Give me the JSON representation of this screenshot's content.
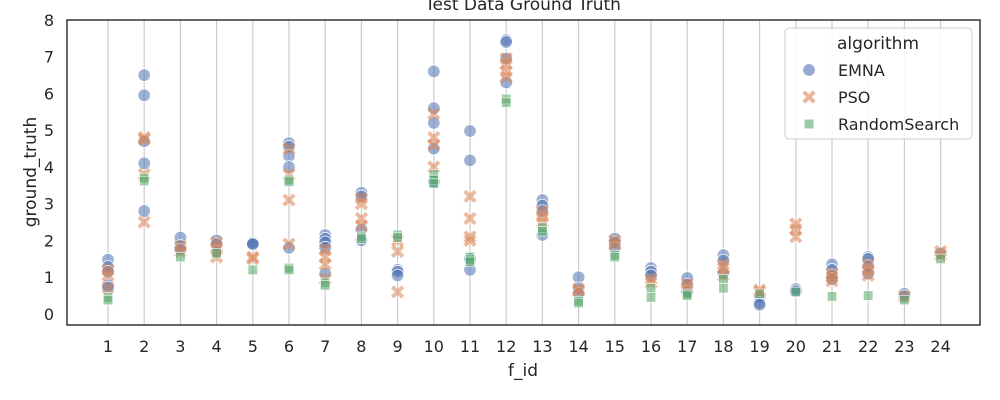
{
  "chart_data": {
    "type": "scatter",
    "title": "Test Data Ground Truth",
    "xlabel": "f_id",
    "ylabel": "ground_truth",
    "categories": [
      "1",
      "2",
      "3",
      "4",
      "5",
      "6",
      "7",
      "8",
      "9",
      "10",
      "11",
      "12",
      "13",
      "14",
      "15",
      "16",
      "17",
      "18",
      "19",
      "20",
      "21",
      "22",
      "23",
      "24"
    ],
    "ylim": [
      -0.3,
      8
    ],
    "yticks": [
      0,
      1,
      2,
      3,
      4,
      5,
      6,
      7,
      8
    ],
    "grid": "vertical",
    "legend": {
      "title": "algorithm",
      "placement": "top-right",
      "entries": [
        "EMNA",
        "PSO",
        "RandomSearch"
      ]
    },
    "colors": {
      "EMNA": "#4c72b0",
      "PSO": "#dd8452",
      "RandomSearch": "#55a868"
    },
    "markers": {
      "EMNA": "circle",
      "PSO": "x",
      "RandomSearch": "square"
    },
    "series": [
      {
        "name": "EMNA",
        "points": [
          [
            1,
            1.48
          ],
          [
            1,
            1.28
          ],
          [
            1,
            1.15
          ],
          [
            1,
            0.78
          ],
          [
            1,
            0.72
          ],
          [
            2,
            6.5
          ],
          [
            2,
            5.95
          ],
          [
            2,
            4.7
          ],
          [
            2,
            4.1
          ],
          [
            2,
            2.8
          ],
          [
            3,
            2.08
          ],
          [
            3,
            1.85
          ],
          [
            3,
            1.75
          ],
          [
            4,
            2.0
          ],
          [
            4,
            1.9
          ],
          [
            4,
            1.7
          ],
          [
            5,
            1.95
          ],
          [
            5,
            1.92
          ],
          [
            5,
            1.9
          ],
          [
            6,
            4.65
          ],
          [
            6,
            4.55
          ],
          [
            6,
            4.3
          ],
          [
            6,
            4.0
          ],
          [
            6,
            1.8
          ],
          [
            7,
            2.15
          ],
          [
            7,
            2.05
          ],
          [
            7,
            1.95
          ],
          [
            7,
            1.8
          ],
          [
            7,
            1.1
          ],
          [
            8,
            3.3
          ],
          [
            8,
            3.2
          ],
          [
            8,
            2.3
          ],
          [
            8,
            2.0
          ],
          [
            9,
            1.2
          ],
          [
            9,
            1.15
          ],
          [
            9,
            1.05
          ],
          [
            10,
            6.6
          ],
          [
            10,
            5.6
          ],
          [
            10,
            5.2
          ],
          [
            10,
            4.5
          ],
          [
            10,
            3.6
          ],
          [
            11,
            4.98
          ],
          [
            11,
            4.18
          ],
          [
            11,
            1.5
          ],
          [
            11,
            1.2
          ],
          [
            12,
            7.45
          ],
          [
            12,
            7.4
          ],
          [
            12,
            6.95
          ],
          [
            12,
            6.3
          ],
          [
            13,
            3.1
          ],
          [
            13,
            2.95
          ],
          [
            13,
            2.8
          ],
          [
            13,
            2.15
          ],
          [
            14,
            1.0
          ],
          [
            14,
            0.7
          ],
          [
            14,
            0.55
          ],
          [
            15,
            2.05
          ],
          [
            15,
            1.95
          ],
          [
            15,
            1.8
          ],
          [
            16,
            1.25
          ],
          [
            16,
            1.15
          ],
          [
            16,
            1.05
          ],
          [
            17,
            0.98
          ],
          [
            17,
            0.8
          ],
          [
            17,
            0.6
          ],
          [
            18,
            1.6
          ],
          [
            18,
            1.45
          ],
          [
            18,
            1.1
          ],
          [
            19,
            0.45
          ],
          [
            19,
            0.3
          ],
          [
            19,
            0.25
          ],
          [
            20,
            0.68
          ],
          [
            20,
            0.62
          ],
          [
            21,
            1.35
          ],
          [
            21,
            1.2
          ],
          [
            21,
            1.05
          ],
          [
            21,
            0.95
          ],
          [
            22,
            1.55
          ],
          [
            22,
            1.5
          ],
          [
            22,
            1.3
          ],
          [
            22,
            1.1
          ],
          [
            23,
            0.55
          ],
          [
            23,
            0.48
          ],
          [
            24,
            1.65
          ]
        ]
      },
      {
        "name": "PSO",
        "points": [
          [
            1,
            1.2
          ],
          [
            1,
            1.05
          ],
          [
            1,
            0.7
          ],
          [
            2,
            4.8
          ],
          [
            2,
            4.75
          ],
          [
            2,
            3.8
          ],
          [
            2,
            2.5
          ],
          [
            3,
            1.85
          ],
          [
            3,
            1.7
          ],
          [
            4,
            1.95
          ],
          [
            4,
            1.8
          ],
          [
            4,
            1.55
          ],
          [
            5,
            1.55
          ],
          [
            5,
            1.5
          ],
          [
            6,
            4.5
          ],
          [
            6,
            3.8
          ],
          [
            6,
            3.1
          ],
          [
            6,
            1.9
          ],
          [
            7,
            1.75
          ],
          [
            7,
            1.55
          ],
          [
            7,
            1.35
          ],
          [
            7,
            0.95
          ],
          [
            8,
            3.15
          ],
          [
            8,
            3.0
          ],
          [
            8,
            2.6
          ],
          [
            8,
            2.4
          ],
          [
            9,
            2.0
          ],
          [
            9,
            1.7
          ],
          [
            9,
            0.6
          ],
          [
            10,
            5.45
          ],
          [
            10,
            4.8
          ],
          [
            10,
            4.6
          ],
          [
            10,
            4.0
          ],
          [
            11,
            3.2
          ],
          [
            11,
            2.6
          ],
          [
            11,
            2.1
          ],
          [
            11,
            2.0
          ],
          [
            12,
            6.95
          ],
          [
            12,
            6.8
          ],
          [
            12,
            6.6
          ],
          [
            12,
            6.45
          ],
          [
            13,
            2.8
          ],
          [
            13,
            2.65
          ],
          [
            13,
            2.5
          ],
          [
            14,
            0.68
          ],
          [
            14,
            0.62
          ],
          [
            15,
            2.0
          ],
          [
            15,
            1.9
          ],
          [
            16,
            0.95
          ],
          [
            16,
            0.85
          ],
          [
            17,
            0.82
          ],
          [
            17,
            0.72
          ],
          [
            18,
            1.35
          ],
          [
            18,
            1.25
          ],
          [
            18,
            1.05
          ],
          [
            19,
            0.65
          ],
          [
            19,
            0.6
          ],
          [
            20,
            2.45
          ],
          [
            20,
            2.3
          ],
          [
            20,
            2.1
          ],
          [
            21,
            1.1
          ],
          [
            21,
            1.0
          ],
          [
            21,
            0.9
          ],
          [
            22,
            1.35
          ],
          [
            22,
            1.2
          ],
          [
            22,
            1.05
          ],
          [
            23,
            0.48
          ],
          [
            24,
            1.7
          ],
          [
            24,
            1.6
          ]
        ]
      },
      {
        "name": "RandomSearch",
        "points": [
          [
            1,
            0.45
          ],
          [
            1,
            0.38
          ],
          [
            2,
            3.7
          ],
          [
            2,
            3.62
          ],
          [
            3,
            1.55
          ],
          [
            4,
            1.65
          ],
          [
            5,
            1.2
          ],
          [
            6,
            3.65
          ],
          [
            6,
            3.6
          ],
          [
            6,
            1.25
          ],
          [
            6,
            1.2
          ],
          [
            7,
            0.85
          ],
          [
            7,
            0.78
          ],
          [
            8,
            2.1
          ],
          [
            8,
            2.05
          ],
          [
            9,
            2.15
          ],
          [
            9,
            2.08
          ],
          [
            10,
            3.8
          ],
          [
            10,
            3.65
          ],
          [
            10,
            3.55
          ],
          [
            11,
            1.55
          ],
          [
            11,
            1.48
          ],
          [
            11,
            1.42
          ],
          [
            12,
            5.85
          ],
          [
            12,
            5.75
          ],
          [
            13,
            2.35
          ],
          [
            13,
            2.25
          ],
          [
            14,
            0.35
          ],
          [
            14,
            0.3
          ],
          [
            15,
            1.6
          ],
          [
            15,
            1.55
          ],
          [
            16,
            0.7
          ],
          [
            16,
            0.45
          ],
          [
            17,
            0.55
          ],
          [
            17,
            0.5
          ],
          [
            18,
            0.95
          ],
          [
            18,
            0.7
          ],
          [
            19,
            0.55
          ],
          [
            20,
            0.6
          ],
          [
            21,
            0.48
          ],
          [
            22,
            0.5
          ],
          [
            23,
            0.38
          ],
          [
            24,
            1.5
          ]
        ]
      }
    ]
  }
}
